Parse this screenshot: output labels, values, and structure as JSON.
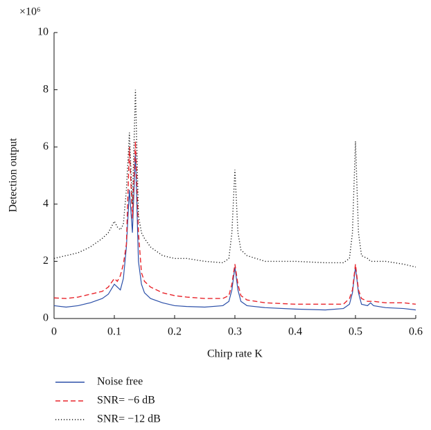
{
  "chart_data": {
    "type": "line",
    "y_scale_label": "×10⁶",
    "xlabel": "Chirp rate K",
    "ylabel": "Detection output",
    "x": [
      0,
      0.02,
      0.04,
      0.06,
      0.08,
      0.09,
      0.1,
      0.105,
      0.11,
      0.115,
      0.12,
      0.125,
      0.13,
      0.135,
      0.14,
      0.145,
      0.15,
      0.16,
      0.18,
      0.2,
      0.22,
      0.25,
      0.28,
      0.29,
      0.295,
      0.3,
      0.305,
      0.31,
      0.32,
      0.35,
      0.4,
      0.45,
      0.48,
      0.49,
      0.495,
      0.5,
      0.505,
      0.51,
      0.52,
      0.525,
      0.53,
      0.55,
      0.58,
      0.6
    ],
    "series": [
      {
        "name": "Noise free",
        "color": "#2b4fa8",
        "style": "solid",
        "values": [
          0.45,
          0.4,
          0.45,
          0.55,
          0.7,
          0.85,
          1.2,
          1.1,
          1.0,
          1.4,
          2.5,
          4.5,
          3.0,
          5.8,
          2.0,
          1.2,
          0.9,
          0.7,
          0.55,
          0.45,
          0.42,
          0.4,
          0.45,
          0.6,
          1.0,
          1.8,
          1.0,
          0.6,
          0.45,
          0.38,
          0.33,
          0.3,
          0.35,
          0.5,
          0.9,
          1.8,
          0.9,
          0.5,
          0.45,
          0.55,
          0.45,
          0.38,
          0.35,
          0.3
        ]
      },
      {
        "name": "SNR= −6 dB",
        "color": "#e8232a",
        "style": "dashed",
        "values": [
          0.72,
          0.7,
          0.75,
          0.85,
          0.95,
          1.1,
          1.4,
          1.3,
          1.5,
          1.9,
          2.6,
          6.0,
          3.5,
          6.2,
          3.0,
          1.6,
          1.3,
          1.1,
          0.9,
          0.8,
          0.75,
          0.7,
          0.7,
          0.8,
          1.2,
          1.9,
          1.2,
          0.8,
          0.65,
          0.55,
          0.5,
          0.5,
          0.5,
          0.7,
          1.0,
          1.9,
          1.0,
          0.7,
          0.6,
          0.6,
          0.6,
          0.55,
          0.55,
          0.5
        ]
      },
      {
        "name": "SNR= −12 dB",
        "color": "#111111",
        "style": "dotted",
        "values": [
          2.1,
          2.2,
          2.3,
          2.5,
          2.8,
          3.0,
          3.4,
          3.2,
          3.1,
          3.3,
          4.5,
          6.5,
          4.0,
          8.0,
          3.6,
          3.0,
          2.8,
          2.5,
          2.2,
          2.1,
          2.1,
          2.0,
          1.95,
          2.1,
          3.0,
          5.2,
          3.0,
          2.4,
          2.2,
          2.0,
          2.0,
          1.95,
          1.95,
          2.1,
          3.0,
          6.2,
          3.0,
          2.2,
          2.1,
          2.0,
          2.0,
          2.0,
          1.9,
          1.8
        ]
      }
    ],
    "xlim": [
      0,
      0.6
    ],
    "xticks": [
      0,
      0.1,
      0.2,
      0.3,
      0.4,
      0.5,
      0.6
    ],
    "ylim": [
      0,
      10
    ],
    "yticks": [
      0,
      2,
      4,
      6,
      8,
      10
    ],
    "grid": false
  }
}
